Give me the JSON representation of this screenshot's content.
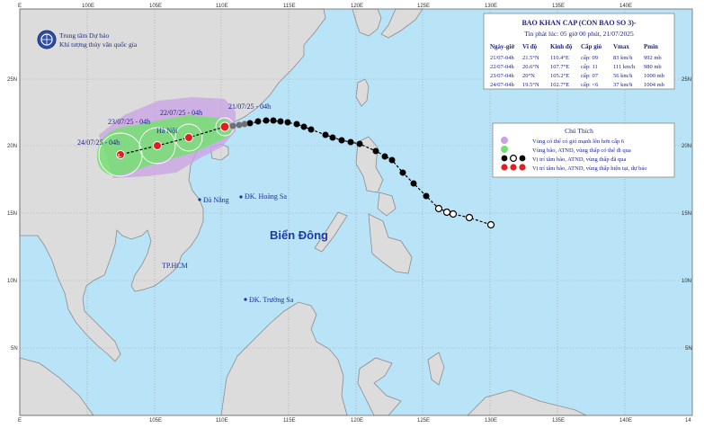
{
  "org": {
    "name": "Trung tâm Dự báo",
    "subname": "Khí tượng thủy văn quốc gia"
  },
  "lon_labels_top": [
    "E",
    "100E",
    "105E",
    "110E",
    "115E",
    "120E",
    "125E",
    "130E",
    "135E",
    "140E"
  ],
  "lon_labels_bottom": [
    "E",
    "105E",
    "110E",
    "115E",
    "120E",
    "125E",
    "130E",
    "135E",
    "140E",
    "14"
  ],
  "lat_labels_left": [
    "25N",
    "20N",
    "15N",
    "10N",
    "5N"
  ],
  "lat_labels_right": [
    "25N",
    "20N",
    "15N",
    "10N",
    "5N"
  ],
  "bulletin": {
    "title": "BAO KHAN CAP (CON BAO SO 3)-",
    "subtitle": "Tin phát lúc: 05 giờ 00 phút, 21/07/2025",
    "headers": [
      "Ngày-giờ",
      "Vĩ độ",
      "Kinh độ",
      "Cấp gió",
      "Vmax",
      "Pmin"
    ],
    "rows": [
      [
        "21/07-04h",
        "21.5°N",
        "110.4°E",
        "cấp: 09",
        "83 km/h",
        "992 mb"
      ],
      [
        "22/07-04h",
        "20.6°N",
        "107.7°E",
        "cấp: 11",
        "111 km/h",
        "980 mb"
      ],
      [
        "23/07-04h",
        "20°N",
        "105.2°E",
        "cấp: 07",
        "56 km/h",
        "1000 mb"
      ],
      [
        "24/07-04h",
        "19.5°N",
        "102.7°E",
        "cấp: <6",
        "37 km/h",
        "1004 mb"
      ]
    ]
  },
  "legend": {
    "title": "Chú Thích",
    "items": [
      {
        "text": "Vùng có thể có gió mạnh lên hơn cấp 6",
        "color": "#c9a2e4"
      },
      {
        "text": "Vùng bão, ATND, vùng thấp có thể đi qua",
        "color": "#74e071"
      },
      {
        "text": "Vị trí tâm bão, ATND, vùng thấp đã qua",
        "color": "#000000"
      },
      {
        "text": "Vị trí tâm bão, ATND, vùng thấp hiện tại, dự báo",
        "color": "#e02020"
      }
    ]
  },
  "forecast_labels": [
    "21/07/25 - 04h",
    "22/07/25 - 04h",
    "23/07/25 - 04h",
    "24/07/25 - 04h"
  ],
  "places": {
    "hoang_sa": "ĐK. Hoàng Sa",
    "truong_sa": "ĐK. Trường Sa",
    "da_nang": "Đà Nẵng",
    "tphcm": "TP.HCM",
    "hanoi": "Hà Nội"
  },
  "sea_name": "Biển Đông",
  "colors": {
    "sea": "#b9e3f7",
    "land": "#dcdcdc",
    "coast": "#8c8c8c",
    "grid": "#9a9a9a"
  }
}
